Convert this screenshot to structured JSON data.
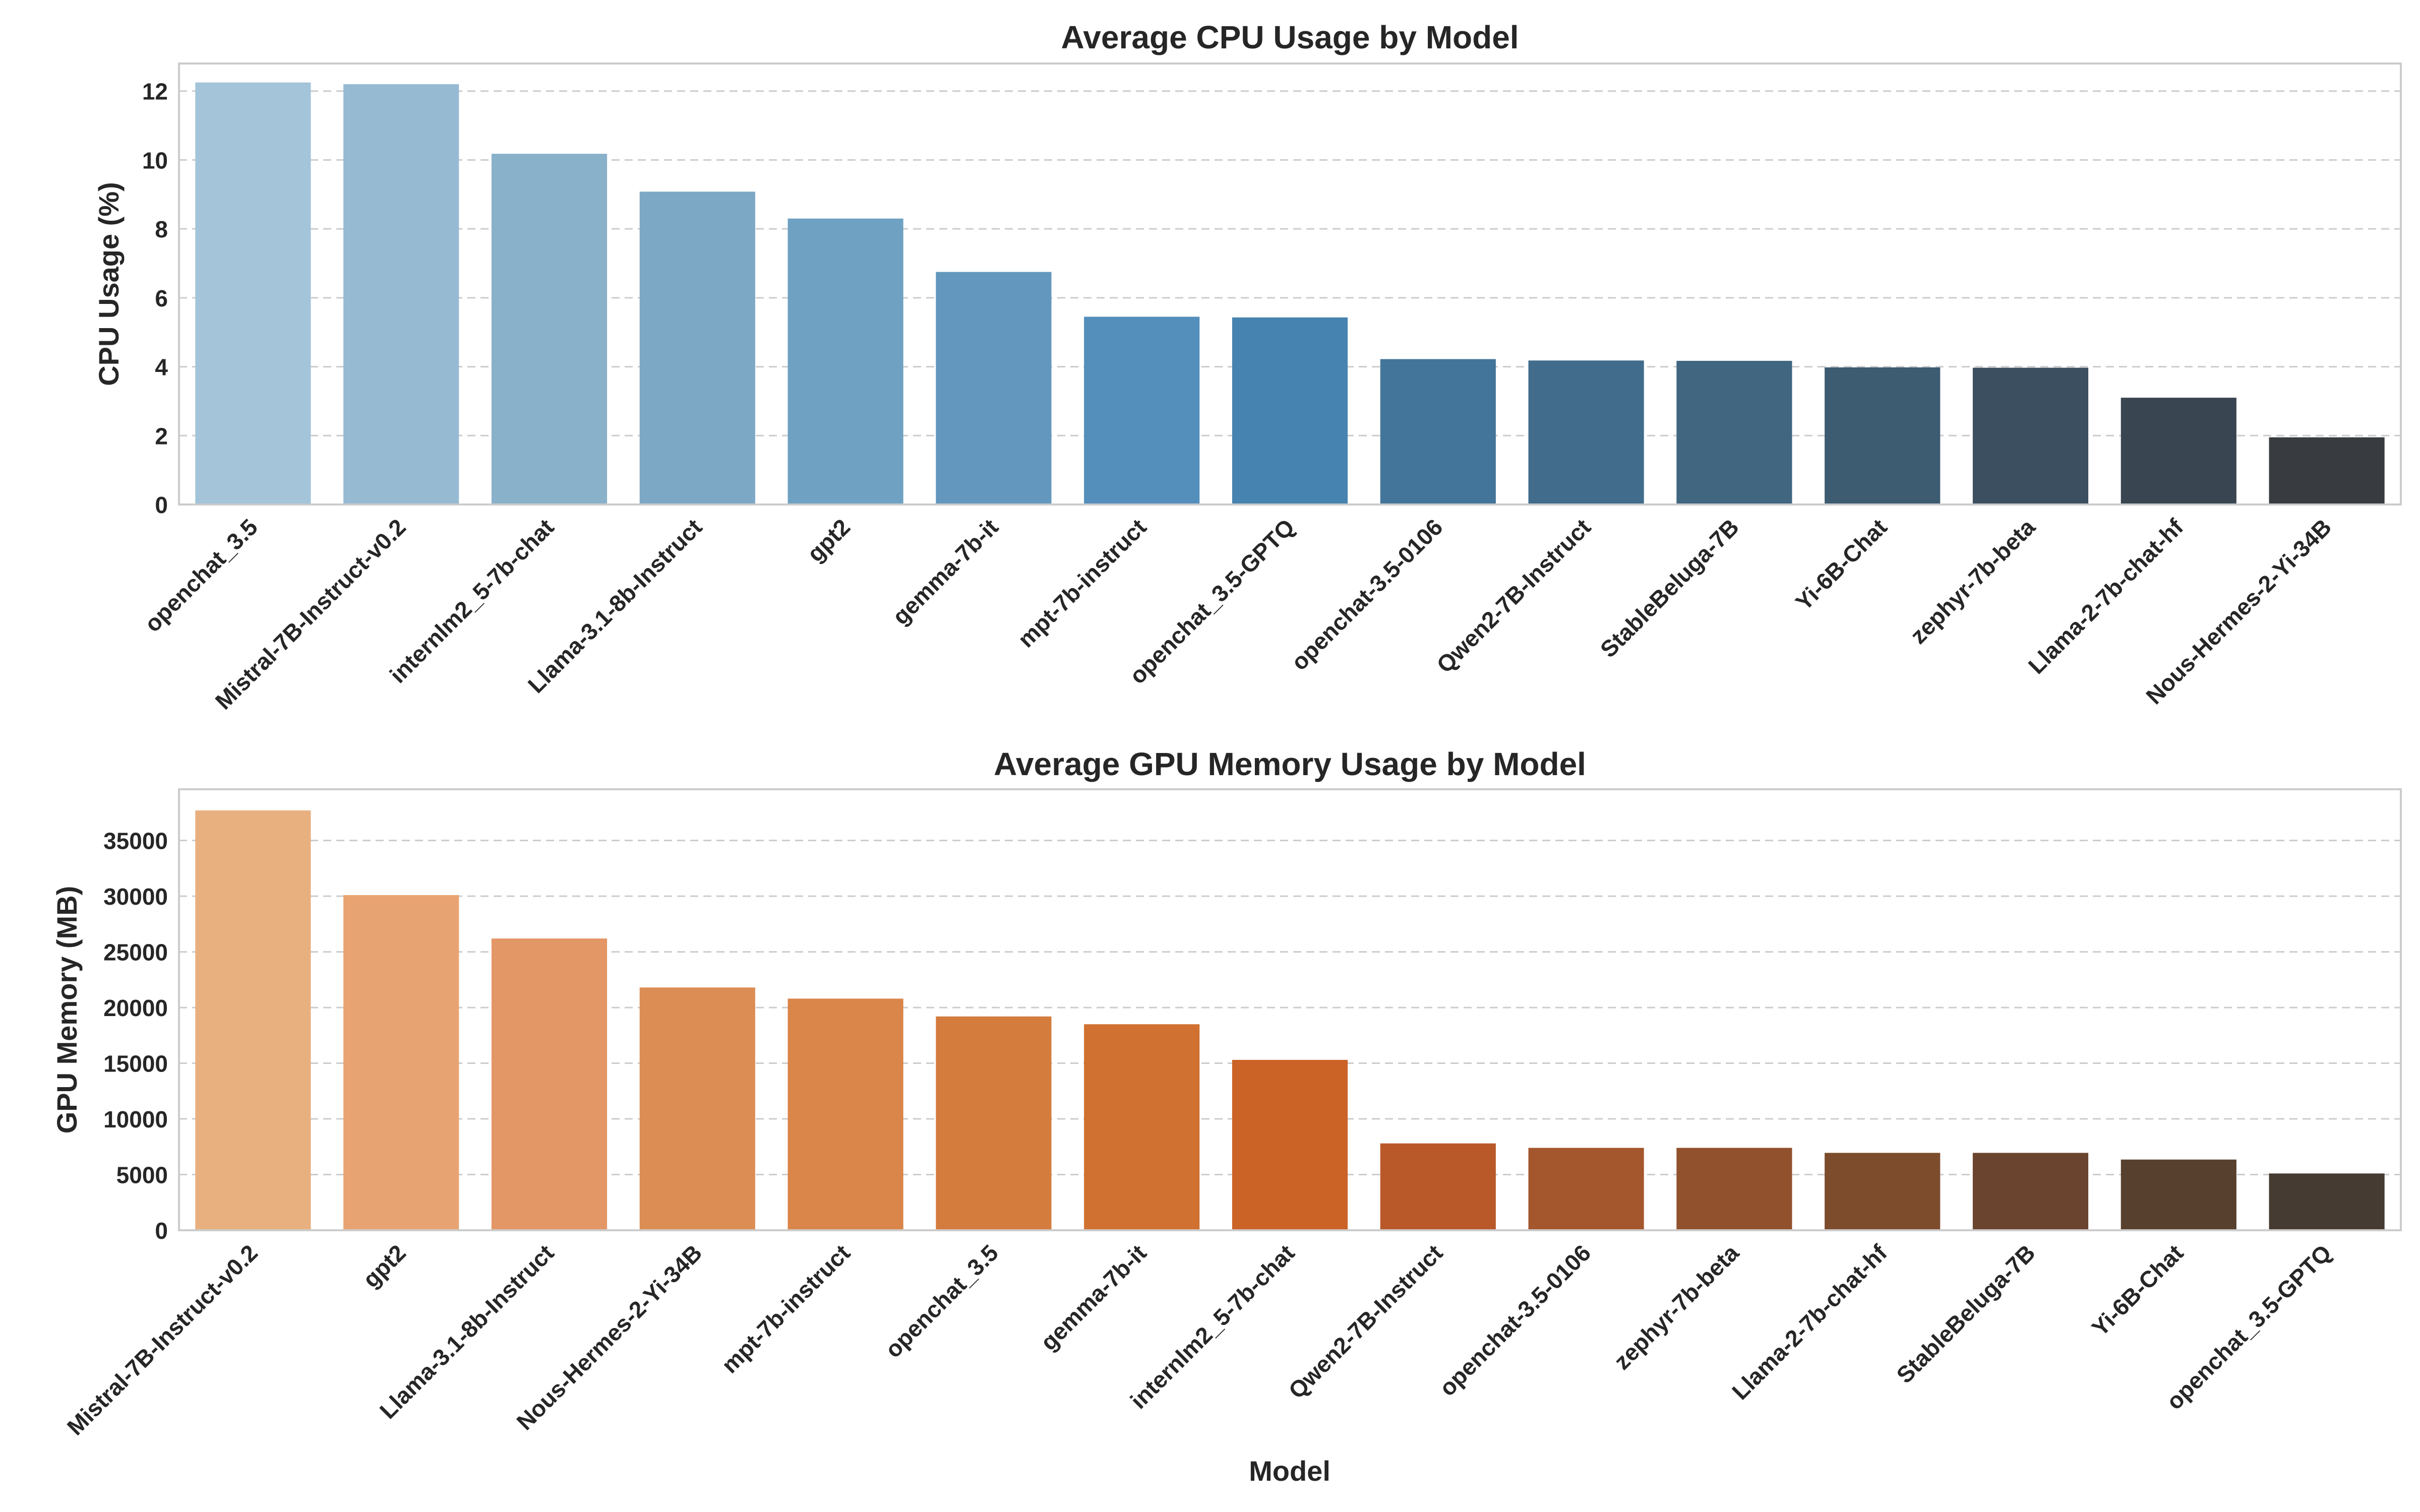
{
  "figure": {
    "xlabel": "Model"
  },
  "chart_data": [
    {
      "type": "bar",
      "title": "Average CPU Usage by Model",
      "xlabel": "",
      "ylabel": "CPU Usage (%)",
      "ylim": [
        0,
        12.8
      ],
      "yticks": [
        0,
        2,
        4,
        6,
        8,
        10,
        12
      ],
      "grid": true,
      "palette": "Blues_d",
      "categories": [
        "openchat_3.5",
        "Mistral-7B-Instruct-v0.2",
        "internlm2_5-7b-chat",
        "Llama-3.1-8b-Instruct",
        "gpt2",
        "gemma-7b-it",
        "mpt-7b-instruct",
        "openchat_3.5-GPTQ",
        "openchat-3.5-0106",
        "Qwen2-7B-Instruct",
        "StableBeluga-7B",
        "Yi-6B-Chat",
        "zephyr-7b-beta",
        "Llama-2-7b-chat-hf",
        "Nous-Hermes-2-Yi-34B"
      ],
      "values": [
        12.25,
        12.2,
        10.18,
        9.08,
        8.3,
        6.75,
        5.45,
        5.43,
        4.22,
        4.18,
        4.17,
        3.98,
        3.97,
        3.1,
        1.95
      ],
      "colors": [
        "#a3c4d9",
        "#97bad3",
        "#89b1ca",
        "#7ca7c5",
        "#6fa1c2",
        "#6397bd",
        "#548ebb",
        "#4683b0",
        "#43759a",
        "#416c8c",
        "#406680",
        "#3d5b71",
        "#3c4f60",
        "#394651",
        "#383c41"
      ]
    },
    {
      "type": "bar",
      "title": "Average GPU Memory Usage by Model",
      "xlabel": "Model",
      "ylabel": "GPU Memory (MB)",
      "ylim": [
        0,
        39600
      ],
      "yticks": [
        0,
        5000,
        10000,
        15000,
        20000,
        25000,
        30000,
        35000
      ],
      "grid": true,
      "palette": "Oranges_d",
      "categories": [
        "Mistral-7B-Instruct-v0.2",
        "gpt2",
        "Llama-3.1-8b-Instruct",
        "Nous-Hermes-2-Yi-34B",
        "mpt-7b-instruct",
        "openchat_3.5",
        "gemma-7b-it",
        "internlm2_5-7b-chat",
        "Qwen2-7B-Instruct",
        "openchat-3.5-0106",
        "zephyr-7b-beta",
        "Llama-2-7b-chat-hf",
        "StableBeluga-7B",
        "Yi-6B-Chat",
        "openchat_3.5-GPTQ"
      ],
      "values": [
        37700,
        30100,
        26200,
        21800,
        20800,
        19200,
        18500,
        15300,
        7800,
        7400,
        7400,
        6950,
        6950,
        6350,
        5100
      ],
      "colors": [
        "#e9b07f",
        "#e7a472",
        "#e49766",
        "#dc8d53",
        "#da8549",
        "#d47b3e",
        "#d07131",
        "#cb6226",
        "#b9592a",
        "#a4562d",
        "#91512d",
        "#7c4c2d",
        "#6a442e",
        "#58402f",
        "#463b32"
      ]
    }
  ]
}
